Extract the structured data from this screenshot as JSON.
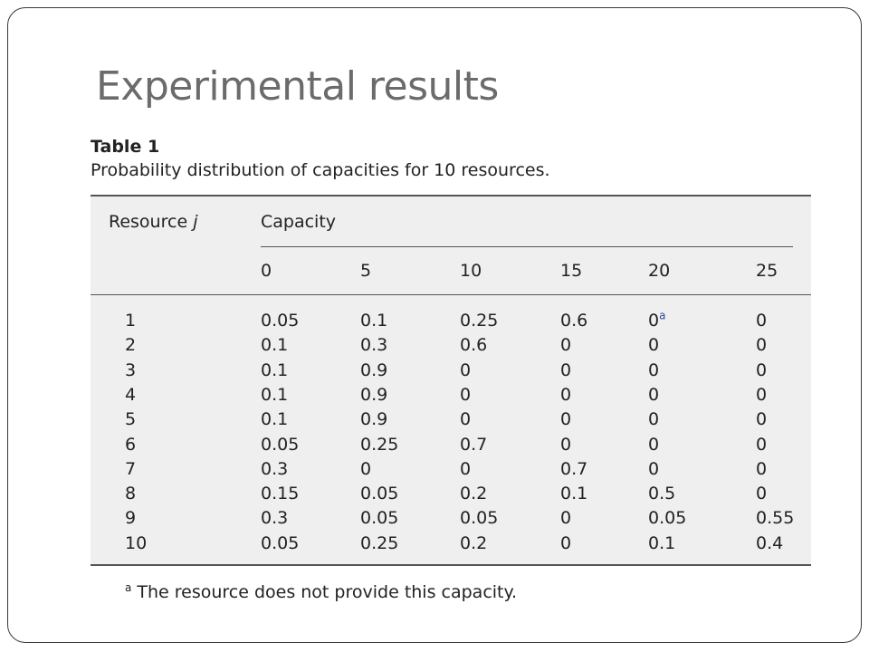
{
  "slide": {
    "title": "Experimental results"
  },
  "table": {
    "label": "Table 1",
    "caption": "Probability distribution of capacities for 10 resources.",
    "header": {
      "resource_label": "Resource ",
      "resource_var": "j",
      "group_label": "Capacity",
      "capacities": [
        "0",
        "5",
        "10",
        "15",
        "20",
        "25"
      ]
    },
    "rows": [
      {
        "resource": "1",
        "values": [
          "0.05",
          "0.1",
          "0.25",
          "0.6",
          "0",
          "0"
        ],
        "note_col": 4,
        "note": "a"
      },
      {
        "resource": "2",
        "values": [
          "0.1",
          "0.3",
          "0.6",
          "0",
          "0",
          "0"
        ]
      },
      {
        "resource": "3",
        "values": [
          "0.1",
          "0.9",
          "0",
          "0",
          "0",
          "0"
        ]
      },
      {
        "resource": "4",
        "values": [
          "0.1",
          "0.9",
          "0",
          "0",
          "0",
          "0"
        ]
      },
      {
        "resource": "5",
        "values": [
          "0.1",
          "0.9",
          "0",
          "0",
          "0",
          "0"
        ]
      },
      {
        "resource": "6",
        "values": [
          "0.05",
          "0.25",
          "0.7",
          "0",
          "0",
          "0"
        ]
      },
      {
        "resource": "7",
        "values": [
          "0.3",
          "0",
          "0",
          "0.7",
          "0",
          "0"
        ]
      },
      {
        "resource": "8",
        "values": [
          "0.15",
          "0.05",
          "0.2",
          "0.1",
          "0.5",
          "0"
        ]
      },
      {
        "resource": "9",
        "values": [
          "0.3",
          "0.05",
          "0.05",
          "0",
          "0.05",
          "0.55"
        ]
      },
      {
        "resource": "10",
        "values": [
          "0.05",
          "0.25",
          "0.2",
          "0",
          "0.1",
          "0.4"
        ]
      }
    ],
    "footnote": {
      "mark": "a",
      "text": "The resource does not provide this capacity."
    }
  }
}
